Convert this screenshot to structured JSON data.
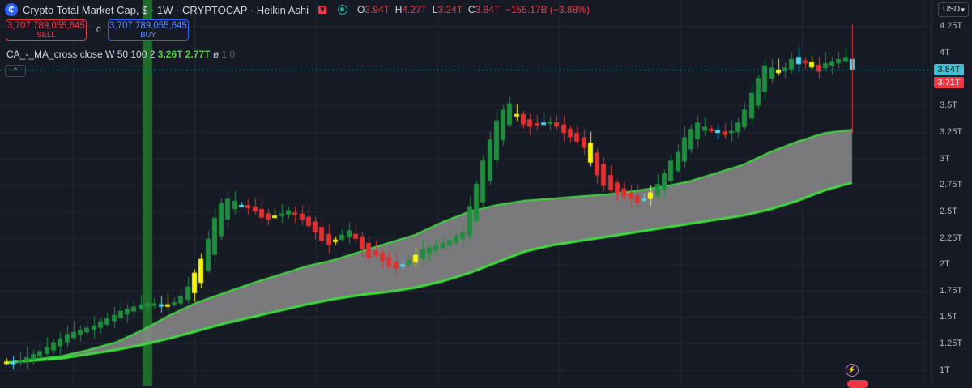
{
  "header": {
    "logo_glyph": "₵",
    "title": "Crypto Total Market Cap, $ · 1W · CRYPTOCAP · Heikin Ashi",
    "ohlc": [
      {
        "k": "O",
        "v": "3.94T"
      },
      {
        "k": "H",
        "v": "4.27T"
      },
      {
        "k": "L",
        "v": "3.24T"
      },
      {
        "k": "C",
        "v": "3.84T"
      }
    ],
    "change": "−155.17B (−3.88%)"
  },
  "trade": {
    "sell_value": "3,707,789,055,645",
    "sell_label": "SELL",
    "spread": "0",
    "buy_value": "3,707,789,055,645",
    "buy_label": "BUY"
  },
  "indicator": {
    "name": "CA_-_MA_cross close W 50 100 2",
    "v1": "3.26T",
    "v2": "2.77T",
    "v3": "ø",
    "v4": "1 0"
  },
  "collapse_glyph": "⌃",
  "currency": "USD",
  "price_axis": {
    "labels": [
      {
        "text": "4.25T",
        "value": 4.25
      },
      {
        "text": "4T",
        "value": 4.0
      },
      {
        "text": "3.5T",
        "value": 3.5
      },
      {
        "text": "3.25T",
        "value": 3.25
      },
      {
        "text": "3T",
        "value": 3.0
      },
      {
        "text": "2.75T",
        "value": 2.75
      },
      {
        "text": "2.5T",
        "value": 2.5
      },
      {
        "text": "2.25T",
        "value": 2.25
      },
      {
        "text": "2T",
        "value": 2.0
      },
      {
        "text": "1.75T",
        "value": 1.75
      },
      {
        "text": "1.5T",
        "value": 1.5
      },
      {
        "text": "1.25T",
        "value": 1.25
      },
      {
        "text": "1T",
        "value": 1.0
      }
    ],
    "last_price": {
      "text": "3.84T",
      "value": 3.84
    },
    "ma_price": {
      "text": "3.71T",
      "value": 3.71
    }
  },
  "colors": {
    "bull": "#1e8e3e",
    "bear": "#e0302f",
    "doji_yellow": "#f5f50a",
    "doji_cyan": "#4fd8f0",
    "ma_line": "#3ddc3d",
    "ma_fill": "#8c8c8c",
    "signal_bar": "#1e6b2a"
  },
  "chart_data": {
    "type": "candlestick",
    "closes": [
      1.08,
      1.07,
      1.09,
      1.12,
      1.15,
      1.18,
      1.22,
      1.26,
      1.3,
      1.34,
      1.36,
      1.38,
      1.4,
      1.42,
      1.46,
      1.49,
      1.52,
      1.56,
      1.58,
      1.6,
      1.62,
      1.63,
      1.63,
      1.62,
      1.61,
      1.64,
      1.7,
      1.79,
      1.92,
      2.05,
      2.24,
      2.44,
      2.58,
      2.62,
      2.6,
      2.56,
      2.53,
      2.5,
      2.44,
      2.42,
      2.46,
      2.48,
      2.51,
      2.47,
      2.42,
      2.36,
      2.3,
      2.22,
      2.18,
      2.23,
      2.28,
      2.32,
      2.24,
      2.14,
      2.06,
      2.08,
      2.03,
      1.98,
      1.96,
      2.0,
      2.04,
      2.09,
      2.14,
      2.16,
      2.18,
      2.2,
      2.23,
      2.27,
      2.3,
      2.55,
      2.76,
      2.98,
      3.18,
      3.36,
      3.46,
      3.52,
      3.42,
      3.32,
      3.3,
      3.32,
      3.34,
      3.35,
      3.3,
      3.24,
      3.2,
      3.16,
      3.1,
      2.96,
      2.84,
      2.74,
      2.7,
      2.66,
      2.64,
      2.62,
      2.58,
      2.62,
      2.68,
      2.76,
      2.86,
      2.98,
      3.06,
      3.2,
      3.28,
      3.34,
      3.3,
      3.26,
      3.24,
      3.22,
      3.26,
      3.34,
      3.46,
      3.62,
      3.76,
      3.88,
      3.86,
      3.84,
      3.86,
      3.94,
      3.96,
      3.9,
      3.86,
      3.82,
      3.9,
      3.92,
      3.94,
      3.96,
      3.84
    ],
    "ma_fast": [
      1.07,
      1.1,
      1.13,
      1.19,
      1.26,
      1.38,
      1.52,
      1.64,
      1.73,
      1.82,
      1.9,
      1.98,
      2.04,
      2.12,
      2.2,
      2.28,
      2.4,
      2.5,
      2.56,
      2.6,
      2.62,
      2.64,
      2.66,
      2.69,
      2.73,
      2.78,
      2.86,
      2.94,
      3.06,
      3.16,
      3.24,
      3.27
    ],
    "ma_slow": [
      1.07,
      1.09,
      1.11,
      1.15,
      1.19,
      1.24,
      1.3,
      1.37,
      1.44,
      1.5,
      1.56,
      1.62,
      1.67,
      1.71,
      1.74,
      1.78,
      1.84,
      1.92,
      2.02,
      2.12,
      2.18,
      2.22,
      2.26,
      2.3,
      2.34,
      2.38,
      2.42,
      2.46,
      2.52,
      2.6,
      2.7,
      2.77
    ],
    "ylim": [
      0.96,
      4.36
    ],
    "signal_bar_index": 21
  }
}
